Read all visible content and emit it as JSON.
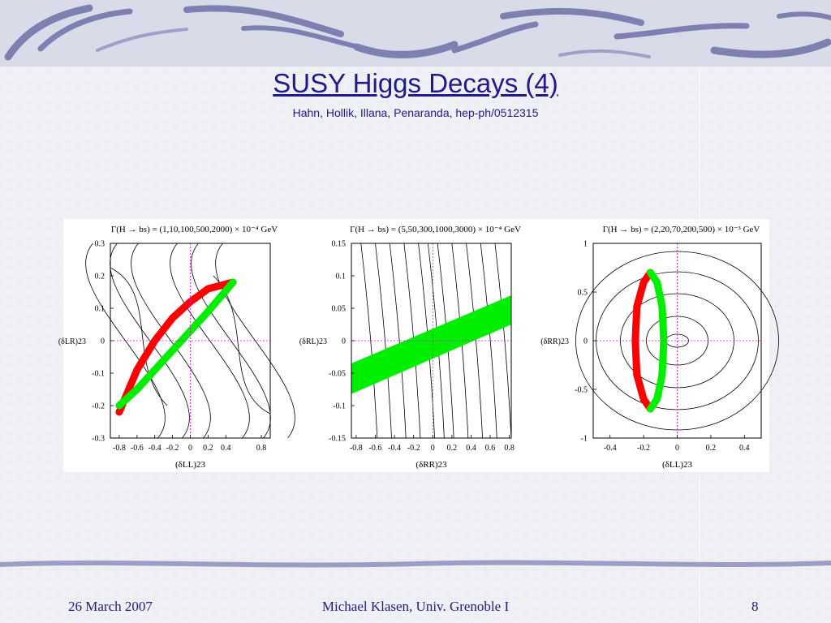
{
  "slide": {
    "title": "SUSY Higgs Decays (4)",
    "subtitle": "Hahn, Hollik, Illana, Penaranda, hep-ph/0512315",
    "footer_date": "26 March 2007",
    "footer_author": "Michael Klasen, Univ. Grenoble I",
    "footer_page": "8"
  },
  "colors": {
    "title": "#1f1b8f",
    "allowed_positive": "#ff0000",
    "allowed_negative": "#00ee00",
    "reference": "#ff00ff",
    "contour": "#000000"
  },
  "chart_data": [
    {
      "type": "contour",
      "header": "Γ(H → bs) = (1,10,100,500,2000) × 10⁻⁴ GeV",
      "xlabel": "(δLL)23",
      "ylabel": "(δLR)23",
      "xlim": [
        -0.9,
        0.9
      ],
      "ylim": [
        -0.3,
        0.3
      ],
      "xticks": [
        -0.8,
        -0.6,
        -0.4,
        -0.2,
        0,
        0.2,
        0.4,
        0.8
      ],
      "yticks": [
        -0.3,
        -0.2,
        -0.1,
        0,
        0.1,
        0.2,
        0.3
      ],
      "contour_levels": [
        1,
        10,
        100,
        500,
        2000
      ],
      "regions": [
        {
          "color": "red",
          "points": [
            [
              -0.8,
              -0.22
            ],
            [
              -0.6,
              -0.09
            ],
            [
              -0.4,
              0.0
            ],
            [
              -0.2,
              0.07
            ],
            [
              0,
              0.12
            ],
            [
              0.2,
              0.16
            ],
            [
              0.48,
              0.18
            ]
          ]
        },
        {
          "color": "green",
          "points": [
            [
              -0.8,
              -0.2
            ],
            [
              -0.6,
              -0.15
            ],
            [
              -0.4,
              -0.09
            ],
            [
              -0.2,
              -0.03
            ],
            [
              0,
              0.03
            ],
            [
              0.2,
              0.09
            ],
            [
              0.48,
              0.18
            ]
          ]
        }
      ]
    },
    {
      "type": "contour",
      "header": "Γ(H → bs) = (5,50,300,1000,3000) × 10⁻⁴ GeV",
      "xlabel": "(δRR)23",
      "ylabel": "(δRL)23",
      "xlim": [
        -0.85,
        0.82
      ],
      "ylim": [
        -0.15,
        0.15
      ],
      "xticks": [
        -0.8,
        -0.6,
        -0.4,
        -0.2,
        0,
        0.2,
        0.4,
        0.6,
        0.8
      ],
      "yticks": [
        -0.15,
        -0.1,
        -0.05,
        0,
        0.05,
        0.1,
        0.15
      ],
      "contour_levels": [
        5,
        50,
        300,
        1000,
        3000
      ],
      "regions": [
        {
          "color": "green",
          "band": {
            "from_x": -0.85,
            "to_x": 0.82,
            "y_low_start": -0.082,
            "y_high_start": -0.035,
            "y_low_end": 0.025,
            "y_high_end": 0.07
          }
        }
      ]
    },
    {
      "type": "contour",
      "header": "Γ(H → bs) = (2,20,70,200,500) × 10⁻³ GeV",
      "xlabel": "(δLL)23",
      "ylabel": "(δRR)23",
      "xlim": [
        -0.5,
        0.5
      ],
      "ylim": [
        -1,
        1
      ],
      "xticks": [
        -0.4,
        -0.2,
        0,
        0.2,
        0.4
      ],
      "yticks": [
        -1,
        -0.5,
        0,
        0.5,
        1
      ],
      "contour_levels": [
        2,
        20,
        70,
        200,
        500
      ],
      "regions": [
        {
          "color": "red",
          "points": [
            [
              -0.16,
              0.7
            ],
            [
              -0.2,
              0.6
            ],
            [
              -0.24,
              0.35
            ],
            [
              -0.25,
              0.0
            ],
            [
              -0.24,
              -0.35
            ],
            [
              -0.2,
              -0.6
            ],
            [
              -0.16,
              -0.7
            ]
          ]
        },
        {
          "color": "green",
          "points": [
            [
              -0.16,
              0.7
            ],
            [
              -0.12,
              0.6
            ],
            [
              -0.09,
              0.35
            ],
            [
              -0.08,
              0.0
            ],
            [
              -0.09,
              -0.35
            ],
            [
              -0.12,
              -0.6
            ],
            [
              -0.16,
              -0.7
            ]
          ]
        }
      ]
    }
  ]
}
